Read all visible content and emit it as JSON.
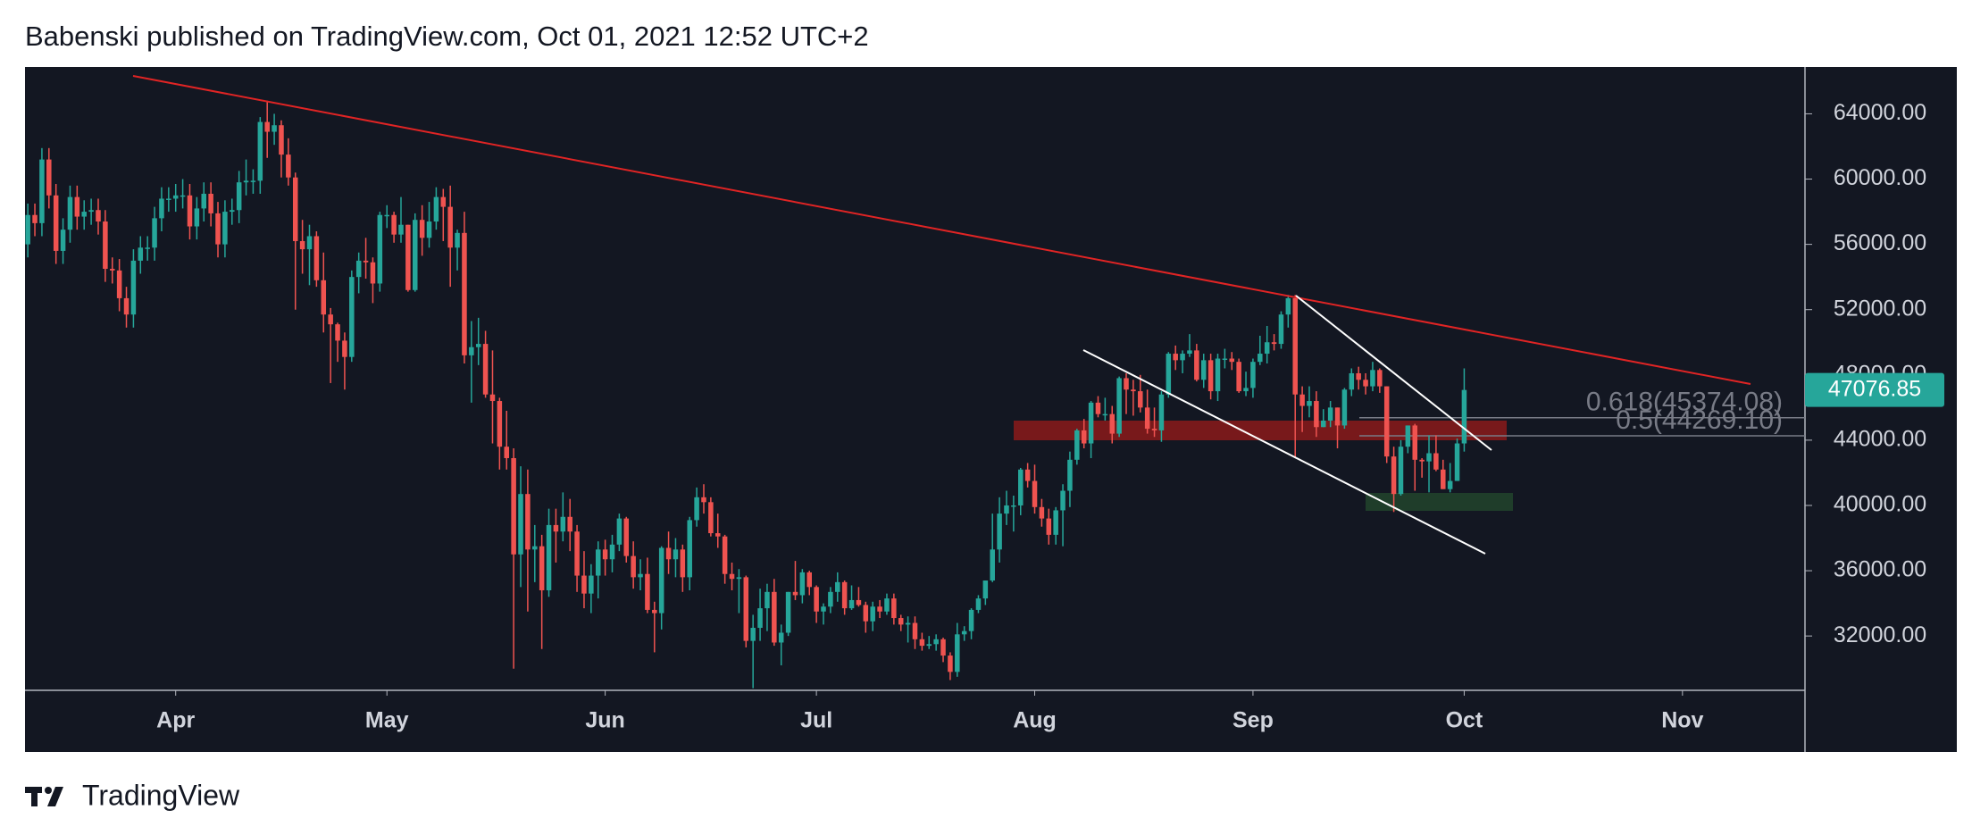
{
  "chart_data": {
    "type": "candlestick",
    "title": "Babenski published on TradingView.com, Oct 01, 2021 12:52 UTC+2",
    "xlim": [
      -0.4,
      252.4
    ],
    "xticks": [
      {
        "value": 21,
        "label": "Apr"
      },
      {
        "value": 51,
        "label": "May"
      },
      {
        "value": 82,
        "label": "Jun"
      },
      {
        "value": 112,
        "label": "Jul"
      },
      {
        "value": 143,
        "label": "Aug"
      },
      {
        "value": 174,
        "label": "Sep"
      },
      {
        "value": 204,
        "label": "Oct"
      },
      {
        "value": 235,
        "label": "Nov"
      }
    ],
    "ylim": [
      28670,
      66870
    ],
    "yticks": [
      {
        "value": 32000,
        "label": "32000.00"
      },
      {
        "value": 36000,
        "label": "36000.00"
      },
      {
        "value": 40000,
        "label": "40000.00"
      },
      {
        "value": 44000,
        "label": "44000.00"
      },
      {
        "value": 48000,
        "label": "48000.00"
      },
      {
        "value": 52000,
        "label": "52000.00"
      },
      {
        "value": 56000,
        "label": "56000.00"
      },
      {
        "value": 60000,
        "label": "60000.00"
      },
      {
        "value": 64000,
        "label": "64000.00"
      }
    ],
    "series": [
      {
        "up_color": "#26a69a",
        "down_color": "#ef5350",
        "open": [
          56000,
          57800,
          57300,
          61200,
          59000,
          55600,
          56900,
          58900,
          57700,
          58000,
          58100,
          57400,
          54500,
          54400,
          52700,
          51700,
          55000,
          55800,
          55800,
          57600,
          58800,
          58800,
          59000,
          59000,
          57100,
          58200,
          59100,
          57900,
          56000,
          58000,
          58100,
          59800,
          59900,
          59900,
          63500,
          62900,
          63300,
          61500,
          60100,
          56200,
          55700,
          56500,
          53800,
          51700,
          51100,
          50100,
          49100,
          54000,
          55000,
          54900,
          53600,
          57800,
          57800,
          56600,
          57200,
          53200,
          57500,
          56400,
          57400,
          58900,
          58300,
          55800,
          56700,
          49200,
          49700,
          49900,
          46800,
          46400,
          43600,
          42900,
          37000,
          40700,
          37300,
          37500,
          34800,
          38800,
          38400,
          39300,
          38400,
          35700,
          34600,
          35700,
          37300,
          36700,
          37600,
          39200,
          36900,
          35600,
          35800,
          33600,
          33400,
          37400,
          36700,
          37300,
          35600,
          39100,
          40500,
          40200,
          38300,
          38100,
          35800,
          35500,
          35600,
          31700,
          32500,
          33700,
          34700,
          31600,
          32200,
          34700,
          34500,
          35900,
          35000,
          33500,
          33800,
          34700,
          35300,
          33700,
          34200,
          33900,
          32900,
          33800,
          33500,
          34300,
          33100,
          32700,
          32800,
          31800,
          31400,
          31500,
          31800,
          30800,
          29800,
          32100,
          32300,
          33600,
          34300,
          35400,
          37300,
          39500,
          40000,
          40000,
          42200,
          41500,
          39900,
          39200,
          38200,
          39700,
          40900,
          42800,
          44600,
          43800,
          46300,
          45600,
          45600,
          44400,
          47800,
          47100,
          47000,
          46000,
          44700,
          44600,
          46800,
          49300,
          48900,
          49300,
          49500,
          47700,
          48900,
          47000,
          49000,
          49000,
          48800,
          47000,
          47200,
          48800,
          49300,
          50000,
          49900,
          51700,
          52700,
          46800,
          46100,
          46400,
          44800,
          45200,
          46000,
          44900,
          47100,
          48100,
          47700,
          47300,
          48300,
          47300,
          43000,
          40700,
          43600,
          44900,
          42800,
          42700,
          43200,
          42200,
          41000,
          41500,
          43800
        ],
        "high": [
          58500,
          58500,
          61900,
          61900,
          59700,
          57600,
          59600,
          59600,
          58700,
          58800,
          58800,
          58100,
          55200,
          55100,
          53400,
          55700,
          56500,
          56500,
          58300,
          59500,
          59500,
          59700,
          60000,
          59700,
          58900,
          59800,
          59800,
          58600,
          58700,
          58800,
          60500,
          61200,
          60600,
          63800,
          64800,
          64000,
          63600,
          62500,
          60400,
          57500,
          57200,
          56800,
          55500,
          52100,
          51200,
          50600,
          54400,
          55500,
          56400,
          55200,
          58000,
          58400,
          58000,
          58900,
          57200,
          57900,
          58400,
          58600,
          59500,
          59400,
          59600,
          56900,
          58000,
          51300,
          51500,
          50700,
          49500,
          46600,
          45800,
          43500,
          42400,
          42200,
          38800,
          38200,
          39800,
          39800,
          40800,
          40400,
          38800,
          37200,
          36400,
          37800,
          37900,
          38200,
          39500,
          39300,
          37800,
          36700,
          36800,
          34100,
          37500,
          38400,
          38000,
          37600,
          39300,
          41100,
          41300,
          40500,
          39500,
          38200,
          36500,
          36100,
          35700,
          33300,
          34900,
          35200,
          35500,
          32700,
          34700,
          36600,
          36100,
          36000,
          35100,
          34000,
          35000,
          35900,
          35400,
          35100,
          35000,
          34100,
          34100,
          34200,
          34600,
          34600,
          33300,
          33200,
          33200,
          32200,
          32000,
          32100,
          31900,
          31000,
          32800,
          32600,
          33700,
          34500,
          35400,
          39500,
          40500,
          40900,
          40600,
          42300,
          42600,
          42500,
          40400,
          39800,
          39900,
          41300,
          43300,
          44700,
          45300,
          46400,
          46700,
          46600,
          46100,
          47900,
          48100,
          47700,
          48000,
          47100,
          46000,
          47000,
          49400,
          49800,
          49500,
          50500,
          49900,
          49300,
          49300,
          49300,
          49600,
          49400,
          49000,
          48200,
          49000,
          50400,
          51000,
          50500,
          51900,
          52900,
          52900,
          47300,
          47300,
          47000,
          45900,
          46400,
          46000,
          47200,
          48400,
          48500,
          48100,
          48800,
          48400,
          47300,
          43600,
          44000,
          44900,
          45000,
          42900,
          44300,
          44300,
          42800,
          42600,
          44100,
          48400
        ],
        "low": [
          55200,
          56500,
          56500,
          58200,
          54800,
          54800,
          56100,
          56900,
          56900,
          57200,
          56600,
          53700,
          53600,
          51900,
          50900,
          50900,
          54200,
          55000,
          55000,
          56800,
          58000,
          58000,
          58200,
          56300,
          56300,
          57400,
          57100,
          55200,
          55200,
          57200,
          57300,
          59000,
          59100,
          59100,
          61300,
          62100,
          60100,
          59600,
          52000,
          54200,
          53500,
          53400,
          50600,
          47500,
          48800,
          47100,
          48800,
          53000,
          53900,
          52400,
          53100,
          57000,
          56100,
          56100,
          53100,
          53100,
          55300,
          55800,
          56900,
          56200,
          53400,
          54400,
          48700,
          46300,
          48600,
          46600,
          43800,
          42200,
          42200,
          30000,
          35000,
          33500,
          35300,
          31200,
          34400,
          36500,
          37800,
          37200,
          34700,
          33700,
          33400,
          34300,
          35700,
          35900,
          37200,
          36500,
          34900,
          34800,
          33400,
          31000,
          32400,
          35800,
          35600,
          34700,
          34800,
          38700,
          39500,
          38100,
          37400,
          35200,
          34800,
          33400,
          31300,
          28800,
          31700,
          32300,
          31400,
          30200,
          32000,
          34200,
          34000,
          34500,
          32800,
          32700,
          33400,
          34100,
          33300,
          33600,
          33800,
          32200,
          32300,
          33100,
          33300,
          32700,
          32300,
          31600,
          31200,
          31100,
          31200,
          31100,
          30400,
          29300,
          29500,
          31700,
          31800,
          33400,
          33900,
          35300,
          36500,
          38800,
          38400,
          39400,
          41100,
          39500,
          38700,
          37600,
          37600,
          37500,
          39900,
          42500,
          43500,
          42900,
          45400,
          45200,
          43800,
          44200,
          45600,
          45500,
          45700,
          44400,
          44200,
          43900,
          46600,
          48300,
          48100,
          49100,
          47600,
          47200,
          46500,
          46400,
          48400,
          48300,
          46900,
          46700,
          46600,
          48600,
          48700,
          49500,
          49600,
          50900,
          42900,
          44500,
          45400,
          44200,
          44800,
          44800,
          43500,
          44700,
          46700,
          47100,
          46800,
          47000,
          46900,
          42600,
          39600,
          40600,
          43200,
          40900,
          41700,
          40800,
          42100,
          41000,
          40800,
          41500,
          43300
        ],
        "close": [
          57800,
          57300,
          61200,
          59000,
          55600,
          56900,
          58900,
          57700,
          58000,
          58100,
          57400,
          54500,
          54400,
          52700,
          51700,
          55000,
          55800,
          55800,
          57600,
          58800,
          58800,
          59000,
          59000,
          57100,
          58200,
          59100,
          57900,
          56000,
          58000,
          58100,
          59800,
          59900,
          59900,
          63500,
          62900,
          63300,
          61500,
          60100,
          56200,
          55700,
          56500,
          53800,
          51700,
          51100,
          50100,
          49100,
          54000,
          55000,
          54900,
          53600,
          57800,
          57800,
          56600,
          57200,
          53200,
          57500,
          56400,
          57400,
          58900,
          58300,
          55800,
          56700,
          49200,
          49700,
          49900,
          46800,
          46400,
          43600,
          42900,
          37000,
          40700,
          37300,
          37500,
          34800,
          38800,
          38400,
          39300,
          38400,
          35700,
          34600,
          35700,
          37300,
          36700,
          37600,
          39200,
          36900,
          35600,
          35800,
          33600,
          33400,
          37400,
          36700,
          37300,
          35600,
          39100,
          40500,
          40200,
          38300,
          38100,
          35800,
          35500,
          35600,
          31700,
          32500,
          33700,
          34700,
          31600,
          32200,
          34700,
          34500,
          35900,
          35000,
          33500,
          33800,
          34700,
          35300,
          33700,
          34200,
          33900,
          32900,
          33800,
          33500,
          34300,
          33100,
          32700,
          32800,
          31800,
          31400,
          31500,
          31800,
          30800,
          29800,
          32100,
          32300,
          33600,
          34300,
          35400,
          37300,
          39500,
          40000,
          40000,
          42200,
          41500,
          39900,
          39200,
          38200,
          39700,
          40900,
          42800,
          44600,
          43800,
          46300,
          45600,
          45600,
          44400,
          47800,
          47100,
          47000,
          46000,
          44700,
          44600,
          46800,
          49300,
          48900,
          49300,
          49500,
          47700,
          48900,
          47000,
          49000,
          49000,
          48800,
          47000,
          47200,
          48800,
          49300,
          50000,
          49900,
          51700,
          52700,
          46800,
          46100,
          46400,
          44800,
          45200,
          46000,
          44900,
          47100,
          48100,
          47700,
          47300,
          48300,
          47300,
          43000,
          40700,
          43600,
          44900,
          42800,
          42700,
          43200,
          42200,
          41000,
          41500,
          43800,
          47076.85
        ]
      }
    ],
    "fib_levels": [
      {
        "value": 45374.08,
        "label": "0.618(45374.08)"
      },
      {
        "value": 44269.1,
        "label": "0.5(44269.10)"
      }
    ],
    "price_tag_color": "#26a69a"
  },
  "footer": {
    "brand": "TradingView"
  }
}
